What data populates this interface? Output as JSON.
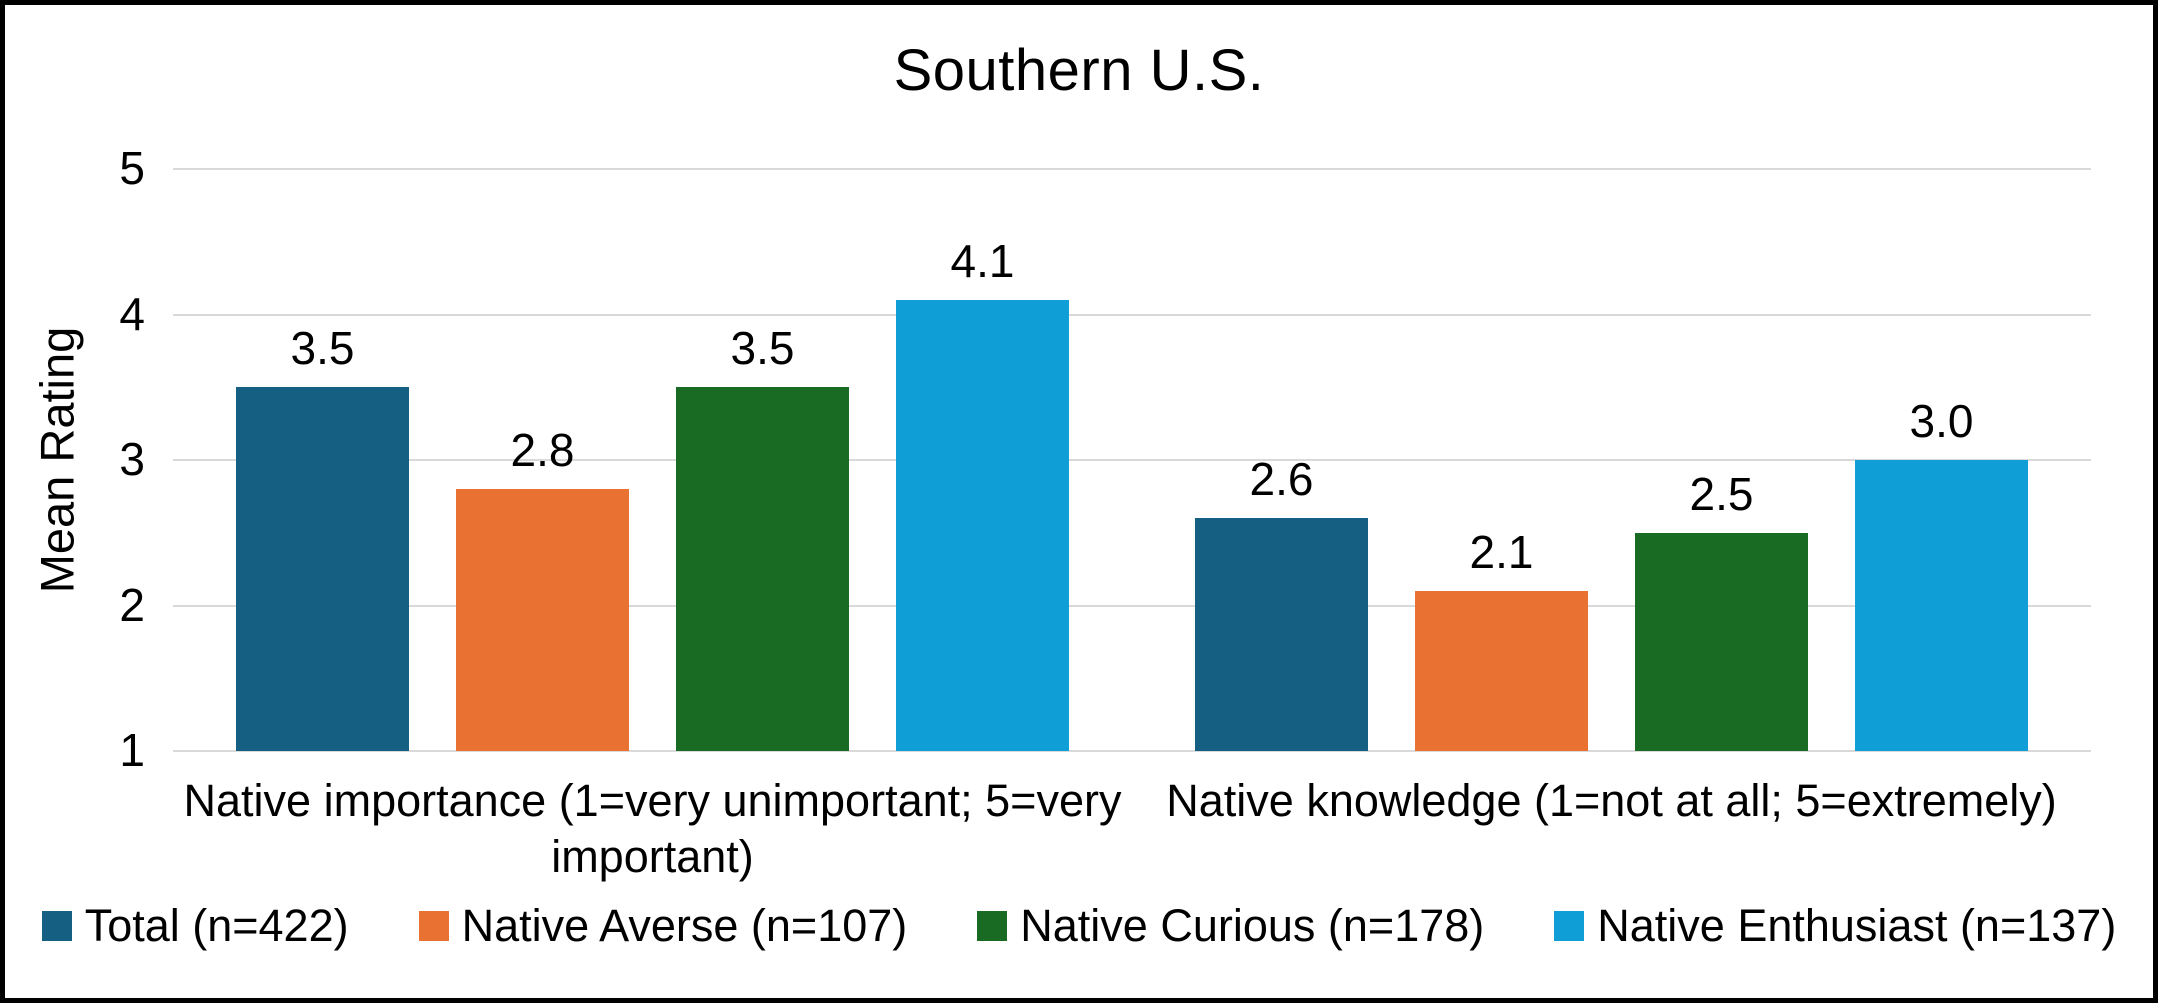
{
  "chart_data": {
    "type": "bar",
    "title": "Southern U.S.",
    "ylabel": "Mean Rating",
    "ylim": [
      1,
      5
    ],
    "yticks": [
      1,
      2,
      3,
      4,
      5
    ],
    "grid": "horizontal",
    "legend_position": "bottom",
    "categories": [
      "Native importance (1=very unimportant; 5=very important)",
      "Native knowledge (1=not at all; 5=extremely)"
    ],
    "series": [
      {
        "name": "Total (n=422)",
        "color": "#156082",
        "values": [
          3.5,
          2.6
        ],
        "labels": [
          "3.5",
          "2.6"
        ]
      },
      {
        "name": "Native Averse (n=107)",
        "color": "#E97132",
        "values": [
          2.8,
          2.1
        ],
        "labels": [
          "2.8",
          "2.1"
        ]
      },
      {
        "name": "Native Curious (n=178)",
        "color": "#196B24",
        "values": [
          3.5,
          2.5
        ],
        "labels": [
          "3.5",
          "2.5"
        ]
      },
      {
        "name": "Native Enthusiast (n=137)",
        "color": "#0F9ED5",
        "values": [
          4.1,
          3.0
        ],
        "labels": [
          "4.1",
          "3.0"
        ]
      }
    ],
    "colors": {
      "gridline": "#D9D9D9",
      "text": "#000000",
      "background": "#FFFFFF",
      "border": "#000000"
    }
  }
}
